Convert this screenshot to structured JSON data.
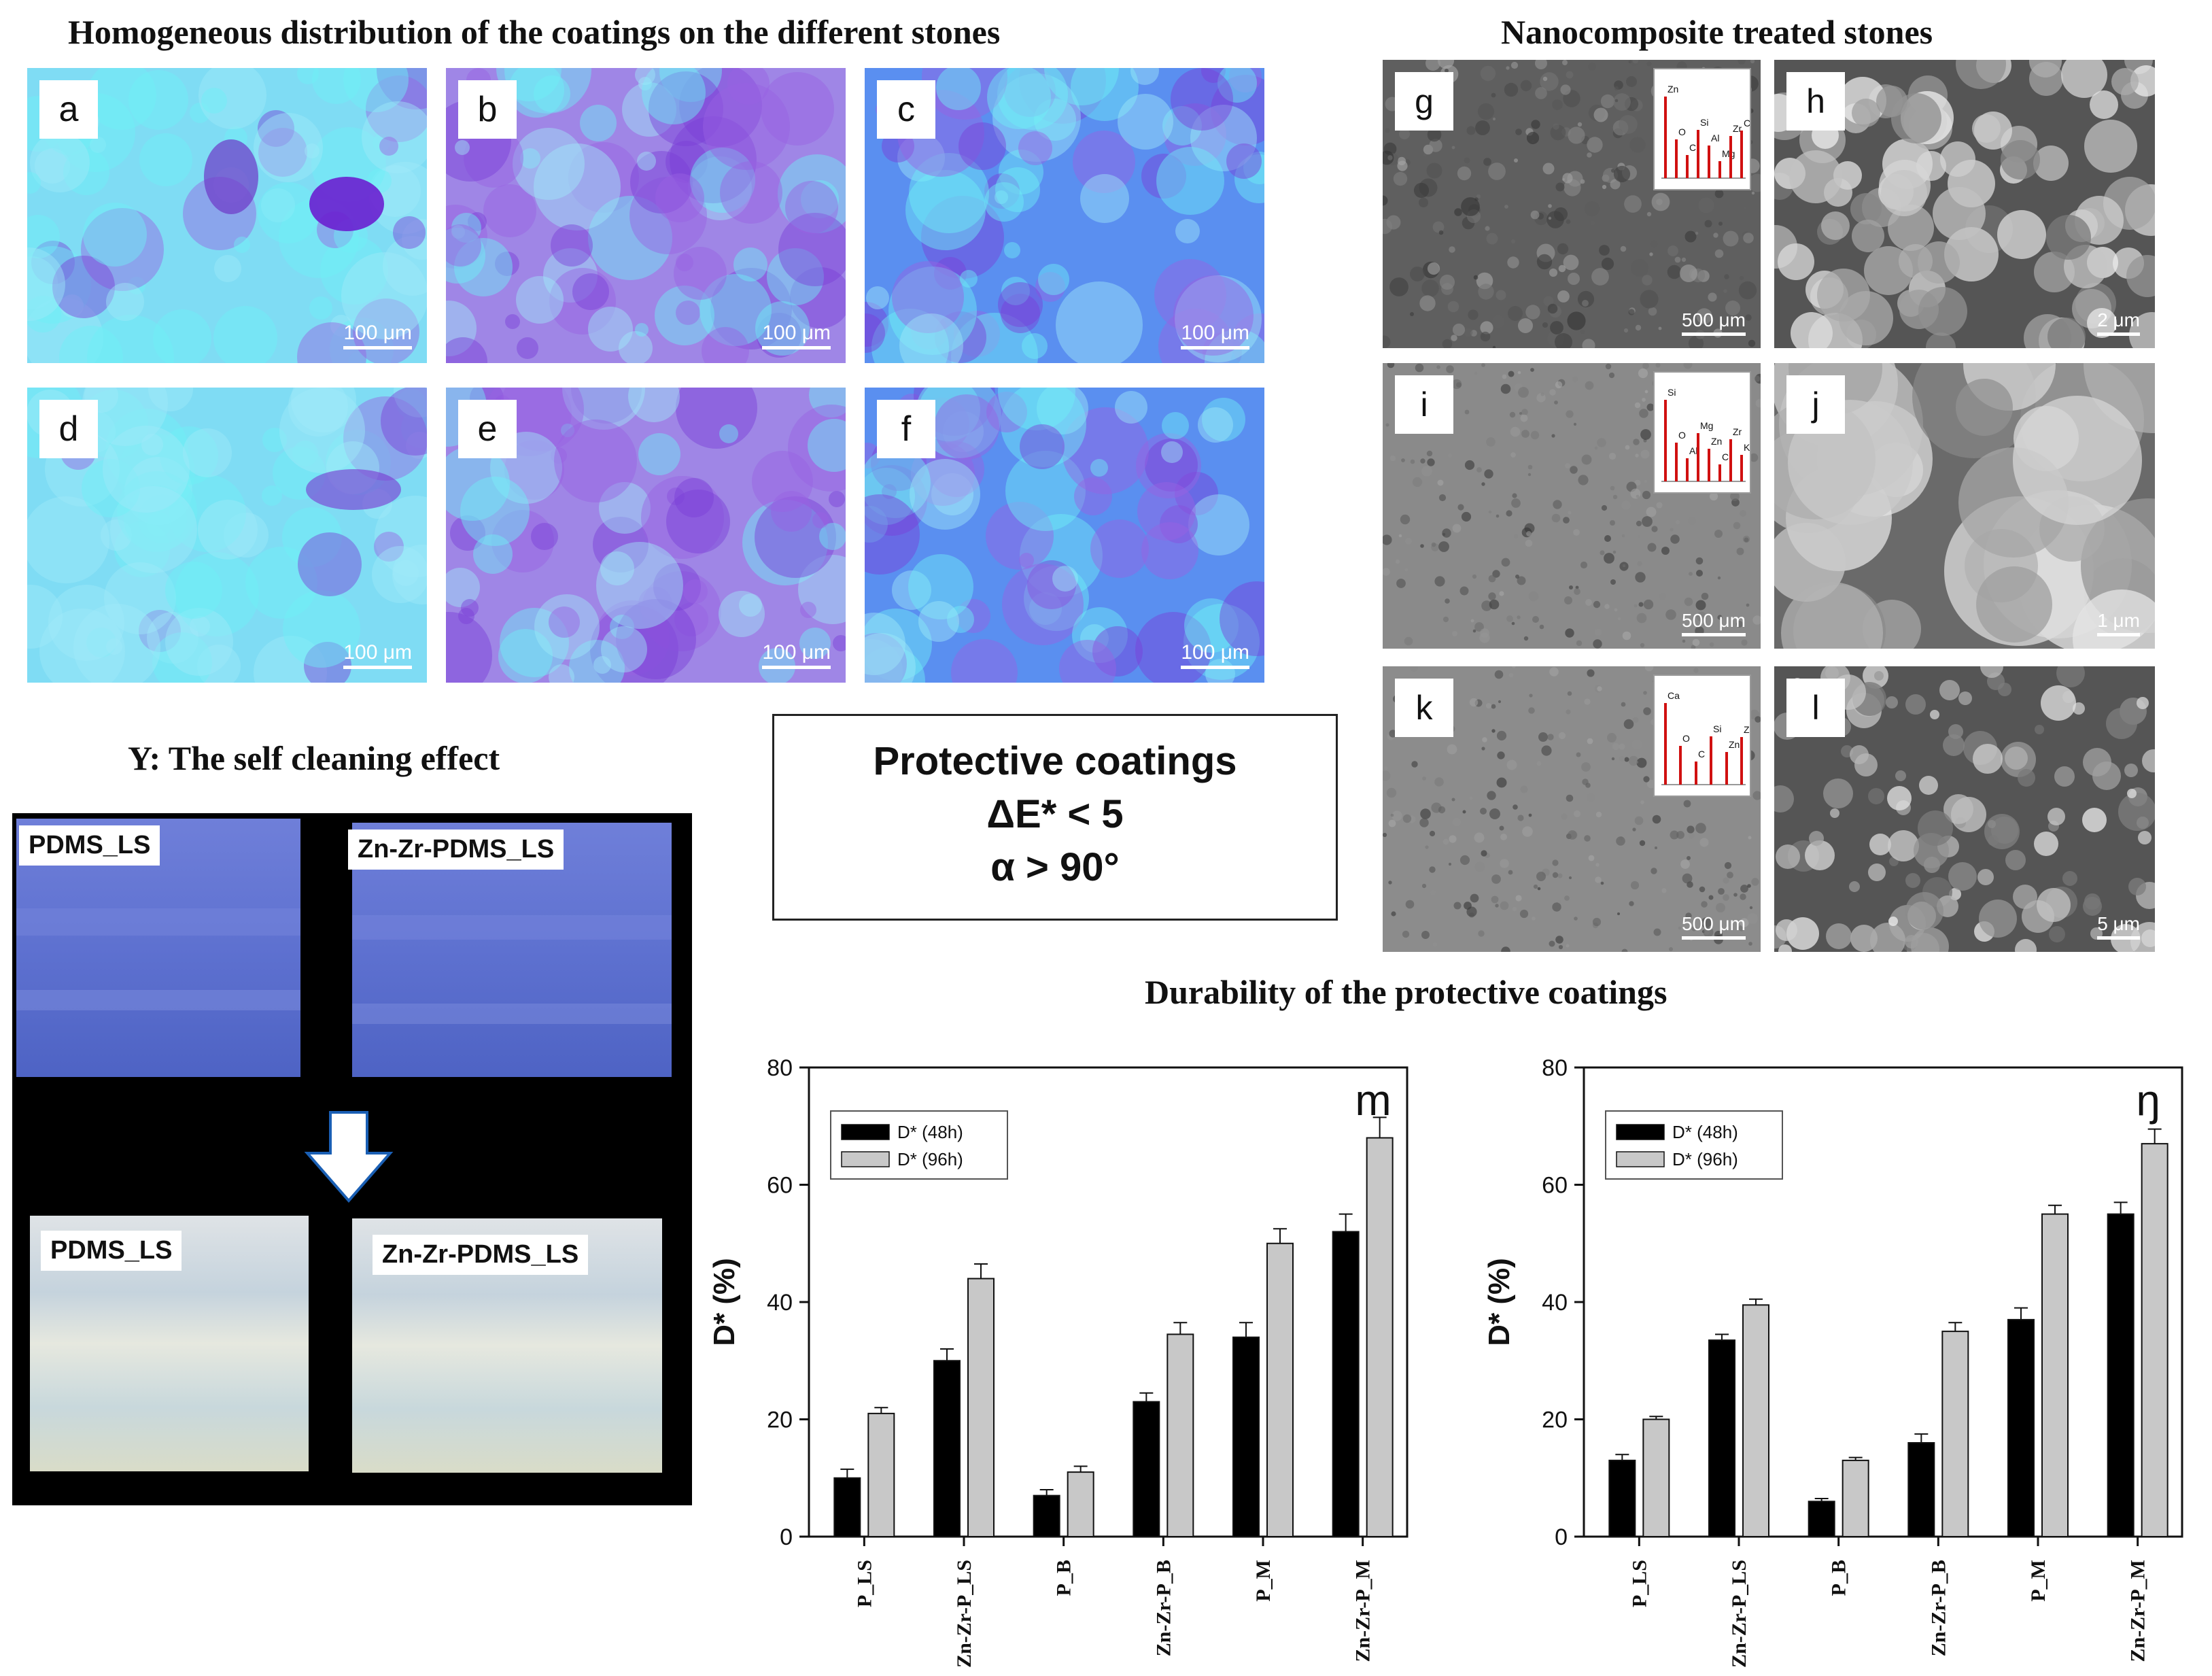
{
  "headings": {
    "fluorescence": "Homogeneous distribution of the coatings on the different stones",
    "sem": "Nanocomposite treated stones",
    "self_cleaning": "Y: The self cleaning effect",
    "durability": "Durability of the protective coatings"
  },
  "fluorescence_panels": [
    {
      "label": "a",
      "scale": "100 μm"
    },
    {
      "label": "b",
      "scale": "100 μm"
    },
    {
      "label": "c",
      "scale": "100 μm"
    },
    {
      "label": "d",
      "scale": "100 μm"
    },
    {
      "label": "e",
      "scale": "100 μm"
    },
    {
      "label": "f",
      "scale": "100 μm"
    }
  ],
  "sem_panels": [
    {
      "label": "g",
      "scale": "500 μm",
      "eds": [
        "Zn",
        "O",
        "C",
        "Si",
        "Al",
        "Mg",
        "Zr",
        "Ca"
      ]
    },
    {
      "label": "h",
      "scale": "2 μm"
    },
    {
      "label": "i",
      "scale": "500 μm",
      "eds": [
        "Si",
        "O",
        "Al",
        "Mg",
        "Zn",
        "C",
        "Zr",
        "K"
      ]
    },
    {
      "label": "j",
      "scale": "1 μm"
    },
    {
      "label": "k",
      "scale": "500 μm",
      "eds": [
        "Ca",
        "O",
        "C",
        "Si",
        "Zn",
        "Zr"
      ]
    },
    {
      "label": "l",
      "scale": "5 μm"
    }
  ],
  "center_box": {
    "line1": "Protective coatings",
    "line2": "ΔE* < 5",
    "line3": "α > 90°"
  },
  "photo_tags": {
    "top_left": "PDMS_LS",
    "top_right": "Zn-Zr-PDMS_LS",
    "bottom_left": "PDMS_LS",
    "bottom_right": "Zn-Zr-PDMS_LS"
  },
  "colors": {
    "bar_48h": "#000000",
    "bar_96h": "#c8c8c8",
    "fluor_base": "#6fe3f4",
    "fluor_violet": "#7a3fd6"
  },
  "chart_data": [
    {
      "type": "bar",
      "panel_letter": "m",
      "categories": [
        "P_LS",
        "Zn-Zr-P_LS",
        "P_B",
        "Zn-Zr-P_B",
        "P_M",
        "Zn-Zr-P_M"
      ],
      "ylabel": "D* (%)",
      "ylim": [
        0,
        80
      ],
      "yticks": [
        "0",
        "20",
        "40",
        "60",
        "80"
      ],
      "legend_position": "top-left",
      "series": [
        {
          "name": "D* (48h)",
          "values": [
            10,
            30,
            7,
            23,
            34,
            52
          ],
          "errors": [
            1.5,
            2.0,
            1.0,
            1.5,
            2.5,
            3.0
          ]
        },
        {
          "name": "D* (96h)",
          "values": [
            21,
            44,
            11,
            34.5,
            50,
            68
          ],
          "errors": [
            1.0,
            2.5,
            1.0,
            2.0,
            2.5,
            3.5
          ]
        }
      ]
    },
    {
      "type": "bar",
      "panel_letter": "ŋ",
      "categories": [
        "P_LS",
        "Zn-Zr-P_LS",
        "P_B",
        "Zn-Zr-P_B",
        "P_M",
        "Zn-Zr-P_M"
      ],
      "ylabel": "D* (%)",
      "ylim": [
        0,
        80
      ],
      "yticks": [
        "0",
        "20",
        "40",
        "60",
        "80"
      ],
      "legend_position": "top-left",
      "series": [
        {
          "name": "D* (48h)",
          "values": [
            13,
            33.5,
            6,
            16,
            37,
            55
          ],
          "errors": [
            1.0,
            1.0,
            0.5,
            1.5,
            2.0,
            2.0
          ]
        },
        {
          "name": "D* (96h)",
          "values": [
            20,
            39.5,
            13,
            35,
            55,
            67
          ],
          "errors": [
            0.5,
            1.0,
            0.5,
            1.5,
            1.5,
            2.5
          ]
        }
      ]
    }
  ]
}
